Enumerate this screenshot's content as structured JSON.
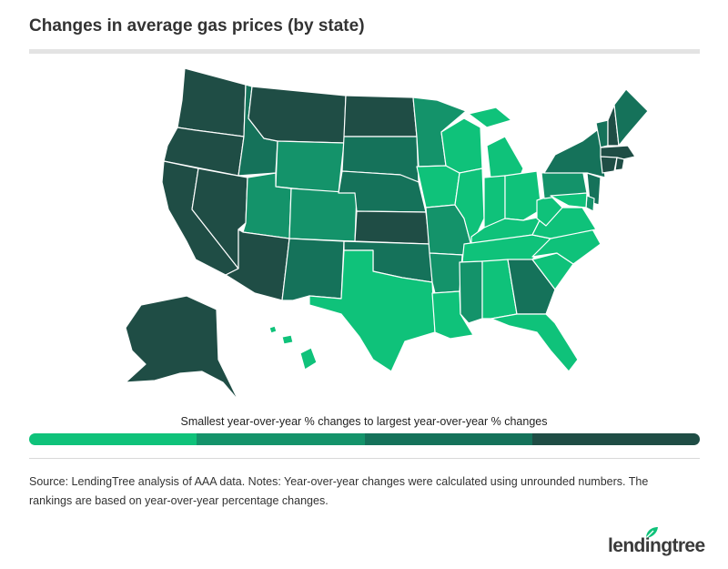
{
  "title": "Changes in average gas prices (by state)",
  "legend": {
    "caption": "Smallest year-over-year % changes to largest year-over-year % changes",
    "colors": [
      "#0fc27a",
      "#14936a",
      "#15725a",
      "#1f4d45"
    ]
  },
  "source_note": "Source: LendingTree analysis of AAA data. Notes: Year-over-year changes were calculated using unrounded numbers. The rankings are based on year-over-year percentage changes.",
  "brand": {
    "name": "lendingtree",
    "icon": "leaf-icon"
  },
  "map_data": {
    "type": "choropleth",
    "scale": "quartile",
    "levels": [
      "smallest",
      "small",
      "large",
      "largest"
    ],
    "states": {
      "WA": 4,
      "OR": 4,
      "CA": 4,
      "NV": 4,
      "AZ": 4,
      "ID": 3,
      "MT": 4,
      "WY": 2,
      "UT": 2,
      "CO": 2,
      "NM": 3,
      "ND": 4,
      "SD": 3,
      "NE": 3,
      "KS": 4,
      "OK": 3,
      "TX": 1,
      "MN": 2,
      "IA": 1,
      "MO": 2,
      "AR": 2,
      "LA": 1,
      "WI": 1,
      "IL": 1,
      "MI": 1,
      "IN": 1,
      "OH": 1,
      "KY": 1,
      "TN": 1,
      "MS": 2,
      "AL": 1,
      "GA": 3,
      "FL": 1,
      "SC": 1,
      "NC": 1,
      "VA": 1,
      "WV": 1,
      "PA": 2,
      "NY": 3,
      "VT": 3,
      "NH": 4,
      "ME": 3,
      "MA": 4,
      "RI": 4,
      "CT": 4,
      "NJ": 3,
      "DE": 2,
      "MD": 1,
      "AK": 4,
      "HI": 1
    }
  }
}
